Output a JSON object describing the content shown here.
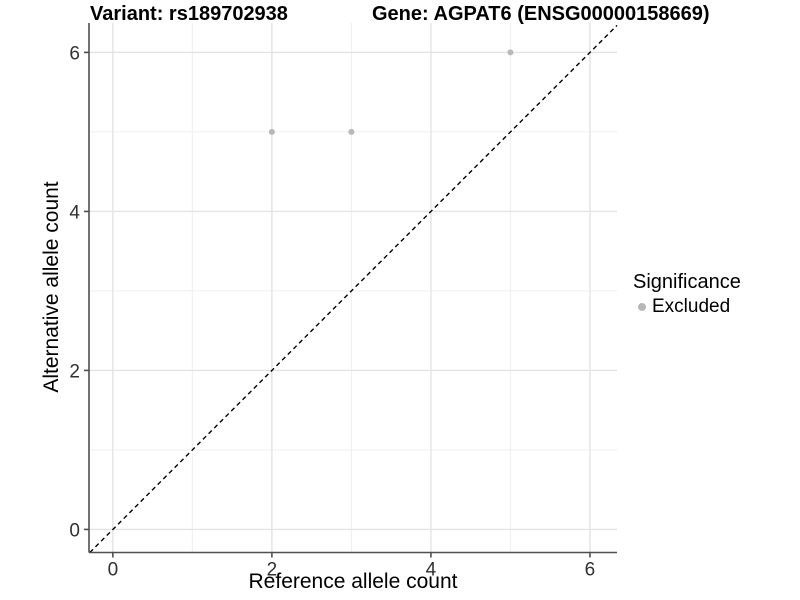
{
  "chart_data": {
    "type": "scatter",
    "title_variant": "Variant: rs189702938",
    "title_gene": "Gene: AGPAT6 (ENSG00000158669)",
    "xlabel": "Reference allele count",
    "ylabel": "Alternative allele count",
    "x_ticks": [
      0,
      2,
      4,
      6
    ],
    "y_ticks": [
      0,
      2,
      4,
      6
    ],
    "x_minor_ticks": [
      1,
      3,
      5
    ],
    "y_minor_ticks": [
      1,
      3,
      5
    ],
    "xlim": [
      -0.3,
      6.34
    ],
    "ylim": [
      -0.29,
      6.37
    ],
    "grid": true,
    "legend_position": "right",
    "series": [
      {
        "name": "Excluded",
        "color": "#b8b8b8",
        "points": [
          {
            "x": 2,
            "y": 5
          },
          {
            "x": 3,
            "y": 5
          },
          {
            "x": 5,
            "y": 6
          }
        ]
      }
    ],
    "reference_line": {
      "type": "identity",
      "style": "dashed",
      "color": "#000000"
    },
    "legend": {
      "title": "Significance",
      "items": [
        {
          "label": "Excluded",
          "color": "#b8b8b8"
        }
      ]
    },
    "style": {
      "background": "#ffffff",
      "grid_major": "#e3e3e3",
      "grid_minor": "#efefef",
      "axis": "#4f4f4f",
      "tick_text": "#303030"
    }
  }
}
